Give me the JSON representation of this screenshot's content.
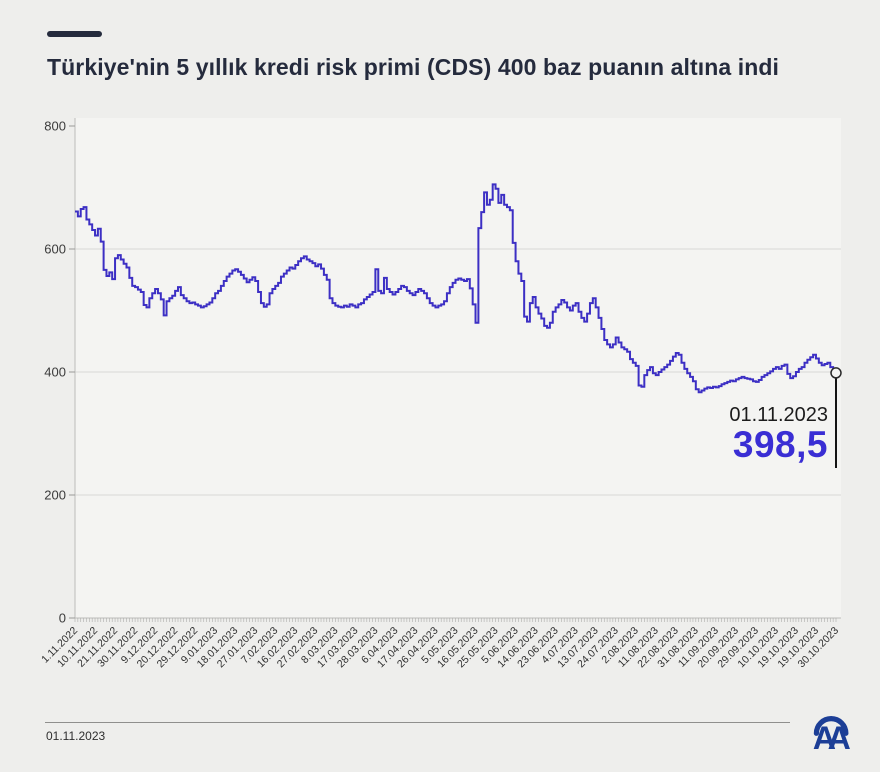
{
  "header": {
    "title": "Türkiye'nin 5 yıllık kredi risk primi (CDS) 400 baz puanın altına indi",
    "accent_color": "#252b3d"
  },
  "chart_data": {
    "type": "line",
    "line_style": "step",
    "title": "",
    "xlabel": "",
    "ylabel": "",
    "ylim": [
      0,
      800
    ],
    "grid": "horizontal",
    "line_color": "#3c2fc4",
    "value_color": "#3a2ed4",
    "plot_bg": "#f4f4f2",
    "grid_color": "#d9d9d7",
    "axis_color": "#bcbcba",
    "y_ticks": [
      0,
      200,
      400,
      600,
      800
    ],
    "x_tick_every": 7,
    "x_tick_labels": [
      "1.11.2022",
      "10.11.2022",
      "21.11.2022",
      "30.11.2022",
      "9.12.2022",
      "20.12.2022",
      "29.12.2022",
      "9.01.2023",
      "18.01.2023",
      "27.01.2023",
      "7.02.2023",
      "16.02.2023",
      "27.02.2023",
      "8.03.2023",
      "17.03.2023",
      "28.03.2023",
      "6.04.2023",
      "17.04.2023",
      "26.04.2023",
      "5.05.2023",
      "16.05.2023",
      "25.05.2023",
      "5.06.2023",
      "14.06.2023",
      "23.06.2023",
      "4.07.2023",
      "13.07.2023",
      "24.07.2023",
      "2.08.2023",
      "11.08.2023",
      "22.08.2023",
      "31.08.2023",
      "11.09.2023",
      "20.09.2023",
      "29.09.2023",
      "10.10.2023",
      "19.10.2023",
      "19.10.2023",
      "30.10.2023"
    ],
    "values": [
      661,
      653,
      665,
      668,
      648,
      640,
      631,
      622,
      633,
      612,
      566,
      556,
      562,
      551,
      585,
      590,
      583,
      576,
      570,
      553,
      540,
      538,
      534,
      530,
      509,
      505,
      520,
      528,
      535,
      528,
      518,
      492,
      515,
      520,
      524,
      532,
      538,
      525,
      520,
      515,
      512,
      513,
      510,
      508,
      505,
      507,
      510,
      513,
      520,
      528,
      532,
      540,
      548,
      555,
      560,
      565,
      567,
      563,
      558,
      552,
      546,
      550,
      554,
      548,
      530,
      512,
      506,
      510,
      528,
      535,
      540,
      545,
      555,
      560,
      565,
      570,
      568,
      574,
      580,
      585,
      588,
      583,
      580,
      577,
      572,
      575,
      568,
      558,
      550,
      520,
      512,
      508,
      506,
      505,
      508,
      506,
      510,
      508,
      505,
      510,
      512,
      518,
      522,
      526,
      530,
      567,
      532,
      528,
      553,
      535,
      530,
      526,
      530,
      535,
      540,
      538,
      532,
      528,
      525,
      530,
      535,
      532,
      528,
      520,
      512,
      508,
      505,
      508,
      510,
      515,
      528,
      538,
      545,
      550,
      552,
      550,
      548,
      551,
      536,
      510,
      480,
      634,
      660,
      692,
      672,
      680,
      705,
      698,
      675,
      688,
      672,
      668,
      663,
      610,
      580,
      560,
      548,
      490,
      482,
      512,
      522,
      505,
      495,
      487,
      475,
      472,
      480,
      498,
      505,
      510,
      517,
      513,
      505,
      500,
      508,
      512,
      498,
      488,
      482,
      495,
      512,
      520,
      505,
      488,
      470,
      452,
      445,
      440,
      445,
      456,
      448,
      440,
      437,
      433,
      421,
      415,
      410,
      378,
      376,
      395,
      403,
      408,
      398,
      395,
      400,
      404,
      408,
      412,
      418,
      425,
      431,
      428,
      415,
      405,
      398,
      392,
      385,
      372,
      367,
      370,
      373,
      375,
      374,
      376,
      375,
      377,
      380,
      382,
      384,
      386,
      385,
      388,
      390,
      392,
      390,
      389,
      388,
      385,
      384,
      387,
      392,
      395,
      398,
      401,
      405,
      408,
      405,
      410,
      412,
      397,
      390,
      393,
      400,
      405,
      408,
      415,
      420,
      424,
      428,
      422,
      415,
      411,
      413,
      415,
      408,
      403,
      398.5
    ],
    "annotation": {
      "date": "01.11.2023",
      "value": "398,5",
      "value_numeric": 398.5
    }
  },
  "footer": {
    "date": "01.11.2023",
    "logo": "Anadolu Ajansı (AA)",
    "logo_color": "#1c3e96"
  }
}
